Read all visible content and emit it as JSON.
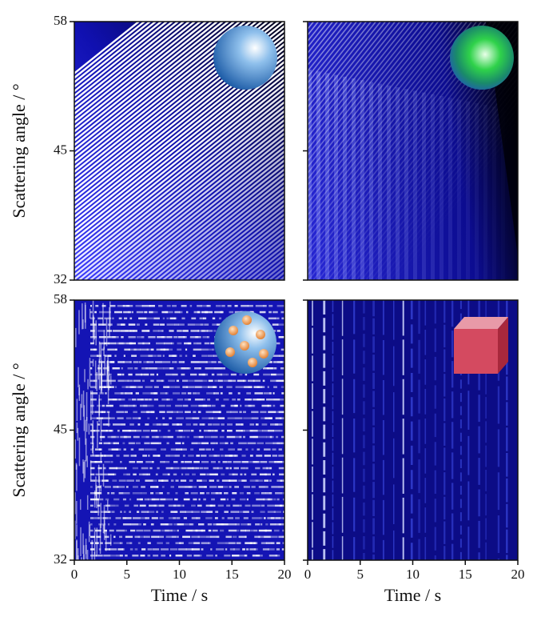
{
  "chart_data": [
    {
      "type": "heatmap",
      "ylabel": "Scattering angle / °",
      "ylim": [
        32,
        58
      ],
      "yticks": [
        32,
        45,
        58
      ]
    },
    {
      "type": "heatmap"
    },
    {
      "type": "heatmap",
      "xlabel": "Time / s",
      "ylabel": "Scattering angle / °",
      "xlim": [
        0,
        20
      ],
      "xticks": [
        0,
        5,
        10,
        15,
        20
      ],
      "ylim": [
        32,
        58
      ],
      "yticks": [
        32,
        45,
        58
      ]
    },
    {
      "type": "heatmap",
      "xlabel": "Time / s",
      "xlim": [
        0,
        20
      ],
      "xticks": [
        0,
        5,
        10,
        15,
        20
      ]
    }
  ]
}
